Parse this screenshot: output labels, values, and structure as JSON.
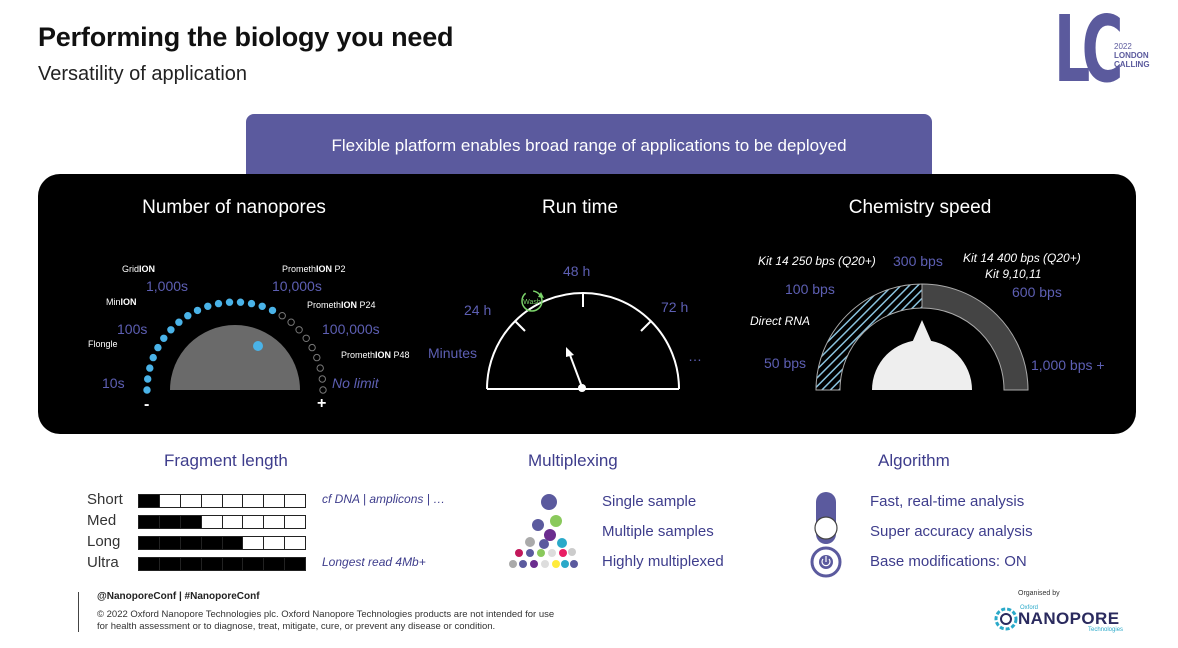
{
  "header": {
    "title": "Performing the biology you need",
    "subtitle": "Versatility of application"
  },
  "logo_lc": {
    "letters": "LC",
    "year": "2022",
    "line1": "LONDON",
    "line2": "CALLING",
    "color": "#5b5a9d"
  },
  "banner": {
    "text": "Flexible platform enables broad range of applications to be deployed",
    "color": "#5b5a9e"
  },
  "gauges": {
    "nanopores": {
      "title": "Number of nanopores",
      "devices": [
        "GridION",
        "MinION",
        "Flongle",
        "PromethION P2",
        "PromethION P24",
        "PromethION P48"
      ],
      "device_parts": {
        "gridion": [
          "Grid",
          "ION"
        ],
        "minion": [
          "Min",
          "ION"
        ],
        "flongle": "Flongle",
        "p2": [
          "Prometh",
          "ION",
          " P2"
        ],
        "p24": [
          "Prometh",
          "ION",
          " P24"
        ],
        "p48": [
          "Prometh",
          "ION",
          " P48"
        ]
      },
      "scale": [
        "10s",
        "100s",
        "1,000s",
        "10,000s",
        "100,000s",
        "No limit"
      ],
      "minus": "-",
      "plus": "+"
    },
    "runtime": {
      "title": "Run time",
      "scale": [
        "Minutes",
        "24 h",
        "48 h",
        "72 h",
        "…"
      ],
      "wash_label": "Wash"
    },
    "chemistry": {
      "title": "Chemistry speed",
      "scale": [
        "50 bps",
        "100 bps",
        "300 bps",
        "600 bps",
        "1,000 bps +"
      ],
      "annotations": {
        "direct_rna": "Direct RNA",
        "kit14_250": "Kit 14 250 bps (Q20+)",
        "kit14_400": "Kit 14 400 bps (Q20+)",
        "kit_9_10_11": "Kit 9,10,11"
      }
    }
  },
  "fragment_length": {
    "title": "Fragment length",
    "rows": [
      {
        "label": "Short",
        "filled": 1,
        "total": 8,
        "note": "cf DNA | amplicons | …"
      },
      {
        "label": "Med",
        "filled": 3,
        "total": 8,
        "note": ""
      },
      {
        "label": "Long",
        "filled": 5,
        "total": 8,
        "note": ""
      },
      {
        "label": "Ultra",
        "filled": 8,
        "total": 8,
        "note": "Longest read 4Mb+"
      }
    ]
  },
  "multiplexing": {
    "title": "Multiplexing",
    "items": [
      "Single sample",
      "Multiple samples",
      "Highly multiplexed"
    ]
  },
  "algorithm": {
    "title": "Algorithm",
    "items": [
      "Fast, real-time analysis",
      "Super accuracy analysis",
      "Base modifications: ON"
    ]
  },
  "footer": {
    "handle": "@NanoporeConf | #NanoporeConf",
    "legal": "© 2022 Oxford Nanopore Technologies plc. Oxford Nanopore Technologies products are not intended for use for health assessment or to diagnose, treat, mitigate, cure, or prevent any disease or condition.",
    "organised_by": "Organised by",
    "org_name": "NANOPORE",
    "org_prefix": "Oxford",
    "org_suffix": "Technologies"
  },
  "colors": {
    "accent_purple": "#5b5a9e",
    "panel_bg": "#000000",
    "label_purple": "#5d5fb3",
    "pore_blue": "#4ab3e8"
  }
}
